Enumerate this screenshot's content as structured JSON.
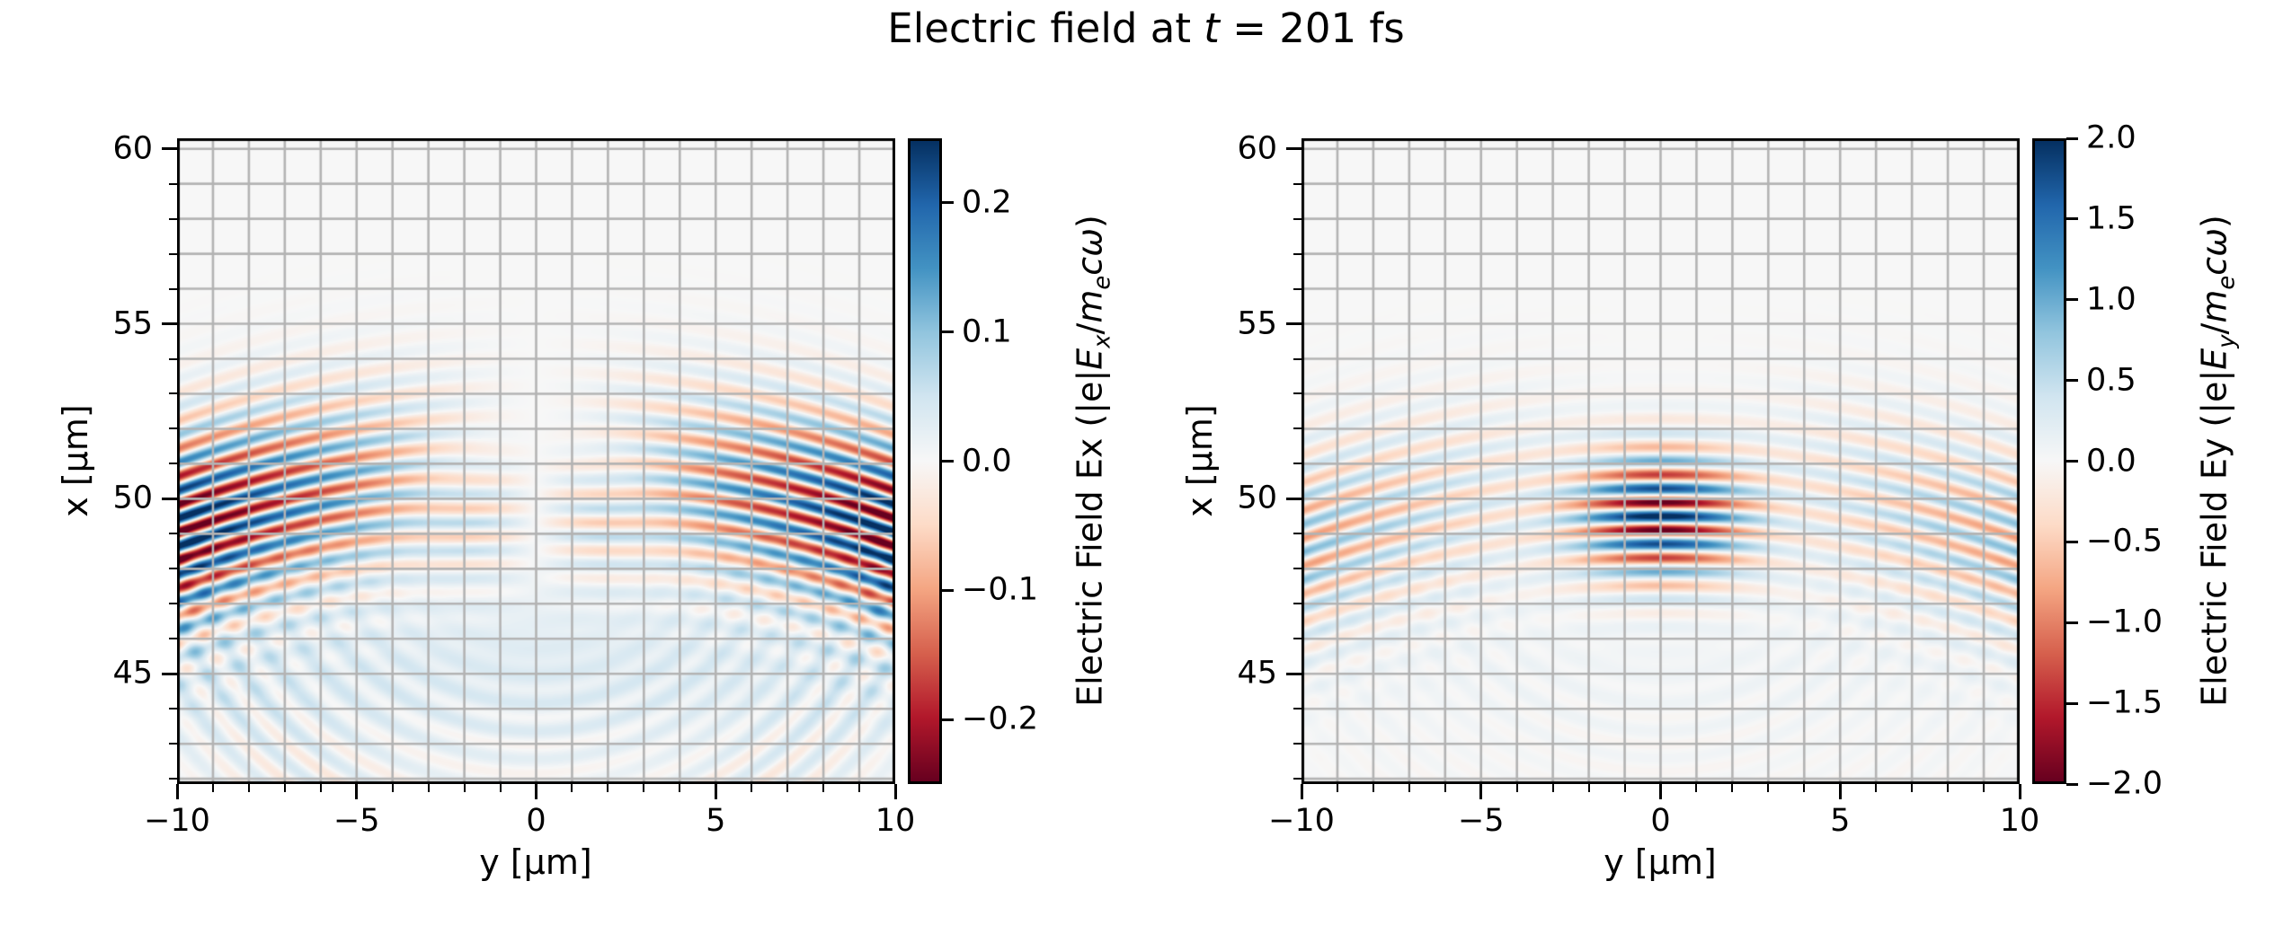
{
  "chart_data": {
    "type": "heatmap",
    "title": "Electric field at t = 201 fs",
    "title_segments": [
      {
        "text": "Electric field at "
      },
      {
        "text": "t",
        "italic": true
      },
      {
        "text": " = 201 fs"
      }
    ],
    "time_fs": 201,
    "colormap": {
      "name": "RdBu",
      "stops": [
        "#67001f",
        "#b2182b",
        "#d6604d",
        "#f4a582",
        "#fddbc7",
        "#f7f7f7",
        "#d1e5f0",
        "#92c5de",
        "#4393c3",
        "#2166ac",
        "#053061"
      ]
    },
    "grid": {
      "color": "#b3b3b3",
      "step_um": 1
    },
    "spine_color": "#000000",
    "background_value_color": "#f7f7f7",
    "panels": [
      {
        "name": "Ex",
        "xlabel": "y [μm]",
        "ylabel": "x [μm]",
        "xlim": [
          -10,
          10
        ],
        "ylim": [
          41.85,
          60.3
        ],
        "xtick_values": [
          -10,
          -5,
          0,
          5,
          10
        ],
        "xtick_labels": [
          "−10",
          "−5",
          "0",
          "5",
          "10"
        ],
        "ytick_values": [
          45,
          50,
          55,
          60
        ],
        "ytick_labels": [
          "45",
          "50",
          "55",
          "60"
        ],
        "minor_step": 1,
        "colorbar": {
          "vmin": -0.25,
          "vmax": 0.25,
          "tick_values": [
            0.2,
            0.1,
            0.0,
            -0.1,
            -0.2
          ],
          "tick_labels": [
            "0.2",
            "0.1",
            "0.0",
            "−0.1",
            "−0.2"
          ],
          "label_plain": "Electric Field Ex (|e|Ex/mecω)",
          "label_segments": [
            {
              "text": "Electric Field Ex (|e|"
            },
            {
              "text": "E",
              "italic": true
            },
            {
              "text": "x",
              "italic": true,
              "sub": true
            },
            {
              "text": "/"
            },
            {
              "text": "m",
              "italic": true
            },
            {
              "text": "e",
              "italic": true,
              "sub": true
            },
            {
              "text": "c",
              "italic": true
            },
            {
              "text": "ω",
              "italic": true
            },
            {
              "text": ")"
            }
          ]
        },
        "field": {
          "wavelength_um": 0.8,
          "center": {
            "x0": 49.55,
            "amp": 0.21,
            "wy": 3.0,
            "wx": 2.0,
            "curv": 90,
            "phase": 0.3,
            "odd": true
          },
          "wings": {
            "x0": 50.8,
            "amp_base": 0.0,
            "amp_edge": 0.3,
            "pow": 1.15,
            "wx": 2.7,
            "curv": 55,
            "phase": 1.2,
            "odd": true
          },
          "wash": {
            "amp": 0.03,
            "x0": 45.2,
            "wx": 2.4
          },
          "ripple_origin": {
            "x0": 49.6,
            "yscale": 0.92,
            "gate_x": 48.3
          },
          "ripples": [
            {
              "r0": 6.3,
              "w": 2.0,
              "amp": 0.02,
              "phase": 0.4
            },
            {
              "r0": 9.4,
              "w": 2.2,
              "amp": 0.035,
              "phase": 1.6,
              "odd": true
            }
          ]
        }
      },
      {
        "name": "Ey",
        "xlabel": "y [μm]",
        "ylabel": "x [μm]",
        "xlim": [
          -10,
          10
        ],
        "ylim": [
          41.85,
          60.3
        ],
        "xtick_values": [
          -10,
          -5,
          0,
          5,
          10
        ],
        "xtick_labels": [
          "−10",
          "−5",
          "0",
          "5",
          "10"
        ],
        "ytick_values": [
          45,
          50,
          55,
          60
        ],
        "ytick_labels": [
          "45",
          "50",
          "55",
          "60"
        ],
        "minor_step": 1,
        "colorbar": {
          "vmin": -2.0,
          "vmax": 2.0,
          "tick_values": [
            2.0,
            1.5,
            1.0,
            0.5,
            0.0,
            -0.5,
            -1.0,
            -1.5,
            -2.0
          ],
          "tick_labels": [
            "2.0",
            "1.5",
            "1.0",
            "0.5",
            "0.0",
            "−0.5",
            "−1.0",
            "−1.5",
            "−2.0"
          ],
          "label_plain": "Electric Field Ey (|e|Ey/mecω)",
          "label_segments": [
            {
              "text": "Electric Field Ey (|e|"
            },
            {
              "text": "E",
              "italic": true
            },
            {
              "text": "y",
              "italic": true,
              "sub": true
            },
            {
              "text": "/"
            },
            {
              "text": "m",
              "italic": true
            },
            {
              "text": "e",
              "italic": true,
              "sub": true
            },
            {
              "text": "c",
              "italic": true
            },
            {
              "text": "ω",
              "italic": true
            },
            {
              "text": ")"
            }
          ]
        },
        "field": {
          "wavelength_um": 0.8,
          "center": {
            "x0": 49.5,
            "amp": 2.15,
            "wy": 2.3,
            "wx": 1.8,
            "curv": 90,
            "phase": 0.0
          },
          "wings": {
            "x0": 50.4,
            "amp_base": 0.15,
            "amp_edge": 0.75,
            "pow": 1.3,
            "wx": 2.7,
            "curv": 55,
            "phase": 1.0,
            "gap_w": 3.2,
            "gap_depth": 0.85
          },
          "wash": {
            "amp": 0.06,
            "x0": 45.5,
            "wx": 2.2
          },
          "ripple_origin": {
            "x0": 49.6,
            "yscale": 0.92,
            "gate_x": 48.3
          },
          "ripples": [
            {
              "r0": 6.3,
              "w": 2.0,
              "amp": 0.07,
              "phase": 0.4
            },
            {
              "r0": 9.4,
              "w": 2.2,
              "amp": 0.05,
              "phase": 1.6
            }
          ]
        }
      }
    ],
    "description": "Two pseudocolor (RdBu) maps of a focused laser pulse at t = 201 fs. Left: longitudinal field Ex, antisymmetric about y = 0, strongest near |y| = 10 μm, clipped at ±0.25. Right: transverse field Ey with an intense striped focal spot centered at (y = 0, x ≈ 49.5 μm) reaching ±2.0, plus weaker curved wave-front wings toward the panel edges. Wavelength of the stripes ≈ 0.8 μm; 1 μm gray grid over both panels."
  }
}
